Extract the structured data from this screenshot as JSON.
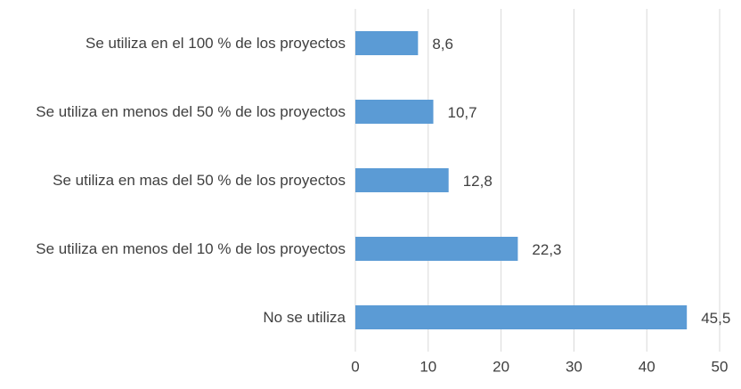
{
  "chart_data": {
    "type": "bar",
    "orientation": "horizontal",
    "categories": [
      "Se utiliza en el 100 % de los proyectos",
      "Se utiliza en menos del 50 % de los proyectos",
      "Se utiliza en mas del 50 % de los proyectos",
      "Se utiliza en menos del 10 % de los proyectos",
      "No se utiliza"
    ],
    "values": [
      8.6,
      10.7,
      12.8,
      22.3,
      45.5
    ],
    "value_labels": [
      "8,6",
      "10,7",
      "12,8",
      "22,3",
      "45,5"
    ],
    "color": "#5b9bd5",
    "xlim": [
      0,
      50
    ],
    "xticks": [
      0,
      10,
      20,
      30,
      40,
      50
    ],
    "grid": true
  }
}
